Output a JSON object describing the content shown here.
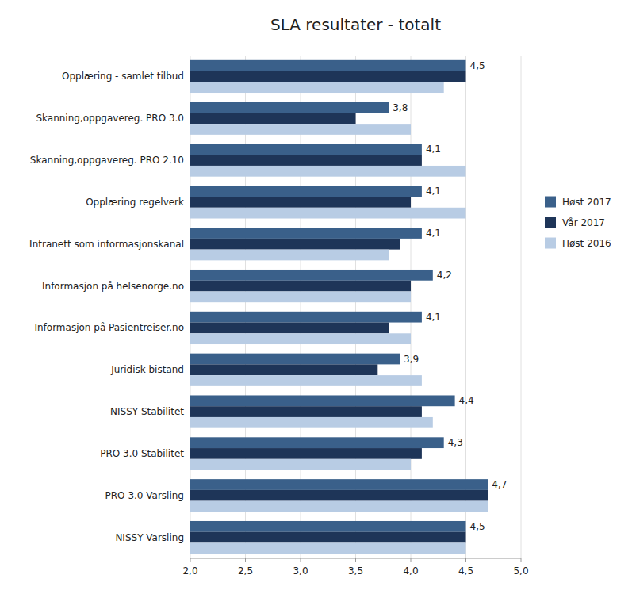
{
  "chart_data": {
    "type": "bar",
    "orientation": "horizontal",
    "title": "SLA resultater - totalt",
    "categories": [
      "NISSY Varsling",
      "PRO 3.0 Varsling",
      "PRO 3.0 Stabilitet",
      "NISSY Stabilitet",
      "Juridisk bistand",
      "Informasjon på Pasientreiser.no",
      "Informasjon på helsenorge.no",
      "Intranett som informasjonskanal",
      "Opplæring regelverk",
      "Skanning,oppgavereg. PRO 2.10",
      "Skanning,oppgavereg. PRO 3.0",
      "Opplæring - samlet tilbud"
    ],
    "series": [
      {
        "name": "Høst 2017",
        "color": "#3a608a",
        "values": [
          4.5,
          4.7,
          4.3,
          4.4,
          3.9,
          4.1,
          4.2,
          4.1,
          4.1,
          4.1,
          3.8,
          4.5
        ],
        "data_labels": true,
        "value_labels": [
          "4,5",
          "4,7",
          "4,3",
          "4,4",
          "3,9",
          "4,1",
          "4,2",
          "4,1",
          "4,1",
          "4,1",
          "3,8",
          "4,5"
        ]
      },
      {
        "name": "Vår 2017",
        "color": "#1e3558",
        "values": [
          4.5,
          4.7,
          4.1,
          4.1,
          3.7,
          3.8,
          4.0,
          3.9,
          4.0,
          4.1,
          3.5,
          4.5
        ]
      },
      {
        "name": "Høst 2016",
        "color": "#b8cce4",
        "values": [
          4.5,
          4.7,
          4.0,
          4.2,
          4.1,
          4.0,
          4.0,
          3.8,
          4.5,
          4.5,
          4.0,
          4.3
        ]
      }
    ],
    "xlim": [
      2.0,
      5.0
    ],
    "xticks": [
      {
        "value": 2.0,
        "label": "2,0"
      },
      {
        "value": 2.5,
        "label": "2,5"
      },
      {
        "value": 3.0,
        "label": "3,0"
      },
      {
        "value": 3.5,
        "label": "3,5"
      },
      {
        "value": 4.0,
        "label": "4,0"
      },
      {
        "value": 4.5,
        "label": "4,5"
      },
      {
        "value": 5.0,
        "label": "5,0"
      }
    ],
    "grid": true,
    "legend": "right"
  }
}
